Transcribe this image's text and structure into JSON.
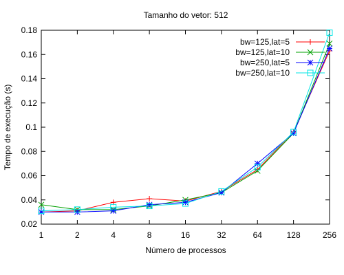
{
  "chart_data": {
    "type": "line",
    "title": "Tamanho do vetor: 512",
    "xlabel": "Número de processos",
    "ylabel": "Tempo de execução (s)",
    "x_scale": "log2",
    "x": [
      1,
      2,
      4,
      8,
      16,
      32,
      64,
      128,
      256
    ],
    "x_tick_labels": [
      "1",
      "2",
      "4",
      "8",
      "16",
      "32",
      "64",
      "128",
      "256"
    ],
    "ylim": [
      0.02,
      0.18
    ],
    "y_ticks": [
      0.02,
      0.04,
      0.06,
      0.08,
      0.1,
      0.12,
      0.14,
      0.16,
      0.18
    ],
    "y_tick_labels": [
      "0.02",
      "0.04",
      "0.06",
      "0.08",
      "0.1",
      "0.12",
      "0.14",
      "0.16",
      "0.18"
    ],
    "grid": false,
    "legend_position": "top-right",
    "series": [
      {
        "name": "bw=125,lat=5",
        "color": "#ff0000",
        "marker": "plus",
        "values": [
          0.03,
          0.031,
          0.038,
          0.041,
          0.039,
          0.047,
          0.065,
          0.096,
          0.163
        ]
      },
      {
        "name": "bw=125,lat=10",
        "color": "#00a000",
        "marker": "cross",
        "values": [
          0.036,
          0.032,
          0.032,
          0.035,
          0.04,
          0.046,
          0.064,
          0.095,
          0.169
        ]
      },
      {
        "name": "bw=250,lat=5",
        "color": "#0000ff",
        "marker": "star",
        "values": [
          0.03,
          0.03,
          0.031,
          0.036,
          0.038,
          0.046,
          0.07,
          0.095,
          0.165
        ]
      },
      {
        "name": "bw=250,lat=10",
        "color": "#00e5e5",
        "marker": "square",
        "values": [
          0.031,
          0.032,
          0.034,
          0.035,
          0.037,
          0.047,
          0.067,
          0.096,
          0.178
        ]
      }
    ]
  }
}
